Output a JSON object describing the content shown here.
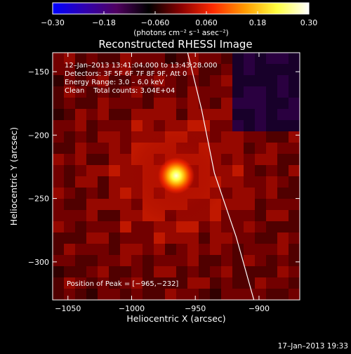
{
  "chart_data": {
    "type": "heatmap",
    "title": "Reconstructed RHESSI Image",
    "xlabel": "Heliocentric X (arcsec)",
    "ylabel": "Heliocentric Y (arcsec)",
    "xlim": [
      -1062,
      -868
    ],
    "ylim": [
      -330,
      -135
    ],
    "xticks": [
      -1050,
      -1000,
      -950,
      -900
    ],
    "xtick_labels": [
      "−1050",
      "−1000",
      "−950",
      "−900"
    ],
    "yticks": [
      -150,
      -200,
      -250,
      -300
    ],
    "ytick_labels": [
      "−150",
      "−200",
      "−250",
      "−300"
    ],
    "colorbar": {
      "range": [
        -0.3,
        0.3
      ],
      "ticks": [
        -0.3,
        -0.18,
        -0.06,
        0.06,
        0.18,
        0.3
      ],
      "tick_labels": [
        "−0.30",
        "−0.18",
        "−0.060",
        "0.060",
        "0.18",
        "0.30"
      ],
      "unit_label": "(photons cm⁻² s⁻¹ asec⁻²)",
      "colormap": [
        "#0000ff",
        "#3000b0",
        "#500060",
        "#000000",
        "#8a0000",
        "#ff2a00",
        "#ff9a00",
        "#ffff40",
        "#ffffff"
      ]
    },
    "peak": {
      "x": -965,
      "y": -232,
      "label": "Position of Peak = [−965,−232]"
    },
    "limb_points": [
      [
        -956,
        -135
      ],
      [
        -945,
        -180
      ],
      [
        -935,
        -230
      ],
      [
        -918,
        -280
      ],
      [
        -904,
        -330
      ]
    ],
    "info_lines": [
      "12–Jan–2013 13:41:04.000 to 13:43:28.000",
      "Detectors: 3F 5F 6F 7F 8F 9F, Att 0",
      "Energy Range: 3.0 – 6.0 keV",
      "Clean    Total counts: 3.04E+04"
    ]
  },
  "footer_date": "17–Jan–2013 19:33"
}
